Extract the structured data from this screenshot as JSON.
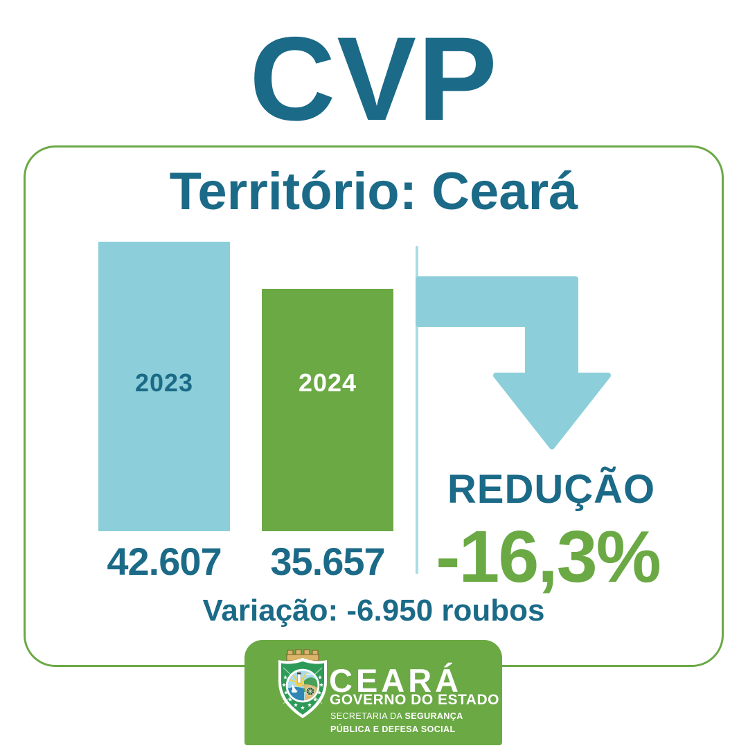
{
  "page": {
    "title": "CVP"
  },
  "card": {
    "heading": "Território: Ceará",
    "reduction": {
      "label": "REDUÇÃO",
      "value": "-16,3%"
    },
    "variation": "Variação: -6.950 roubos"
  },
  "chart_data": {
    "type": "bar",
    "title": "Território: Ceará",
    "categories": [
      "2023",
      "2024"
    ],
    "values": [
      42607,
      35657
    ],
    "value_labels": [
      "42.607",
      "35.657"
    ],
    "bar_colors": [
      "#8CCFDA",
      "#6BA945"
    ],
    "category_label_colors": [
      "#1B6A87",
      "#FFFFFF"
    ],
    "ylim": [
      0,
      42607
    ],
    "grid": false,
    "legend": false,
    "annotations": {
      "reduction_label": "REDUÇÃO",
      "reduction_pct": "-16,3%",
      "variation": "Variação: -6.950 roubos"
    }
  },
  "badge": {
    "state": "CEARÁ",
    "government": "GOVERNO DO ESTADO",
    "secretariat_prefix": "SECRETARIA DA ",
    "secretariat_bold1": "SEGURANÇA",
    "secretariat_line2": "PÚBLICA E DEFESA SOCIAL"
  },
  "icons": {
    "down_arrow": "elbow-down-arrow-icon",
    "coat_of_arms": "ceara-state-coat-of-arms-icon"
  },
  "colors": {
    "teal": "#1B6A87",
    "light_blue": "#8CCFDA",
    "divider_blue": "#A9DCE3",
    "green": "#6BA945",
    "shield_green": "#2E9A57",
    "crown_gold": "#D9B469",
    "white": "#FFFFFF"
  }
}
